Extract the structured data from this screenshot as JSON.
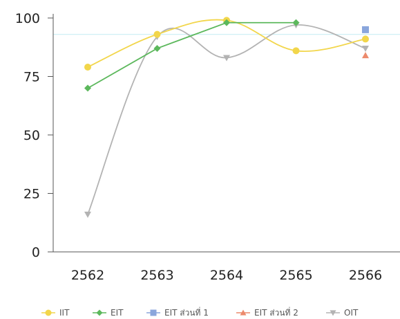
{
  "chart_data": {
    "type": "line",
    "categories": [
      "2562",
      "2563",
      "2564",
      "2565",
      "2566"
    ],
    "yticks": [
      "0",
      "25",
      "50",
      "75",
      "100"
    ],
    "ylim": [
      0,
      100
    ],
    "reference_line": 93,
    "series": [
      {
        "name": "IIT",
        "color": "#f2d64b",
        "marker": "circle",
        "values": [
          79,
          93,
          99,
          86,
          91
        ]
      },
      {
        "name": "EIT",
        "color": "#5cb85c",
        "marker": "diamond",
        "values": [
          70,
          87,
          98,
          98,
          null
        ]
      },
      {
        "name": "EIT ส่วนที่ 1",
        "color": "#8aa6dc",
        "marker": "square",
        "values": [
          null,
          null,
          null,
          null,
          95
        ]
      },
      {
        "name": "EIT ส่วนที่ 2",
        "color": "#ec8a6c",
        "marker": "triangle-up",
        "values": [
          null,
          null,
          null,
          null,
          84
        ]
      },
      {
        "name": "OIT",
        "color": "#b3b3b3",
        "marker": "triangle-down",
        "values": [
          16,
          92,
          83,
          97,
          87
        ]
      }
    ]
  }
}
